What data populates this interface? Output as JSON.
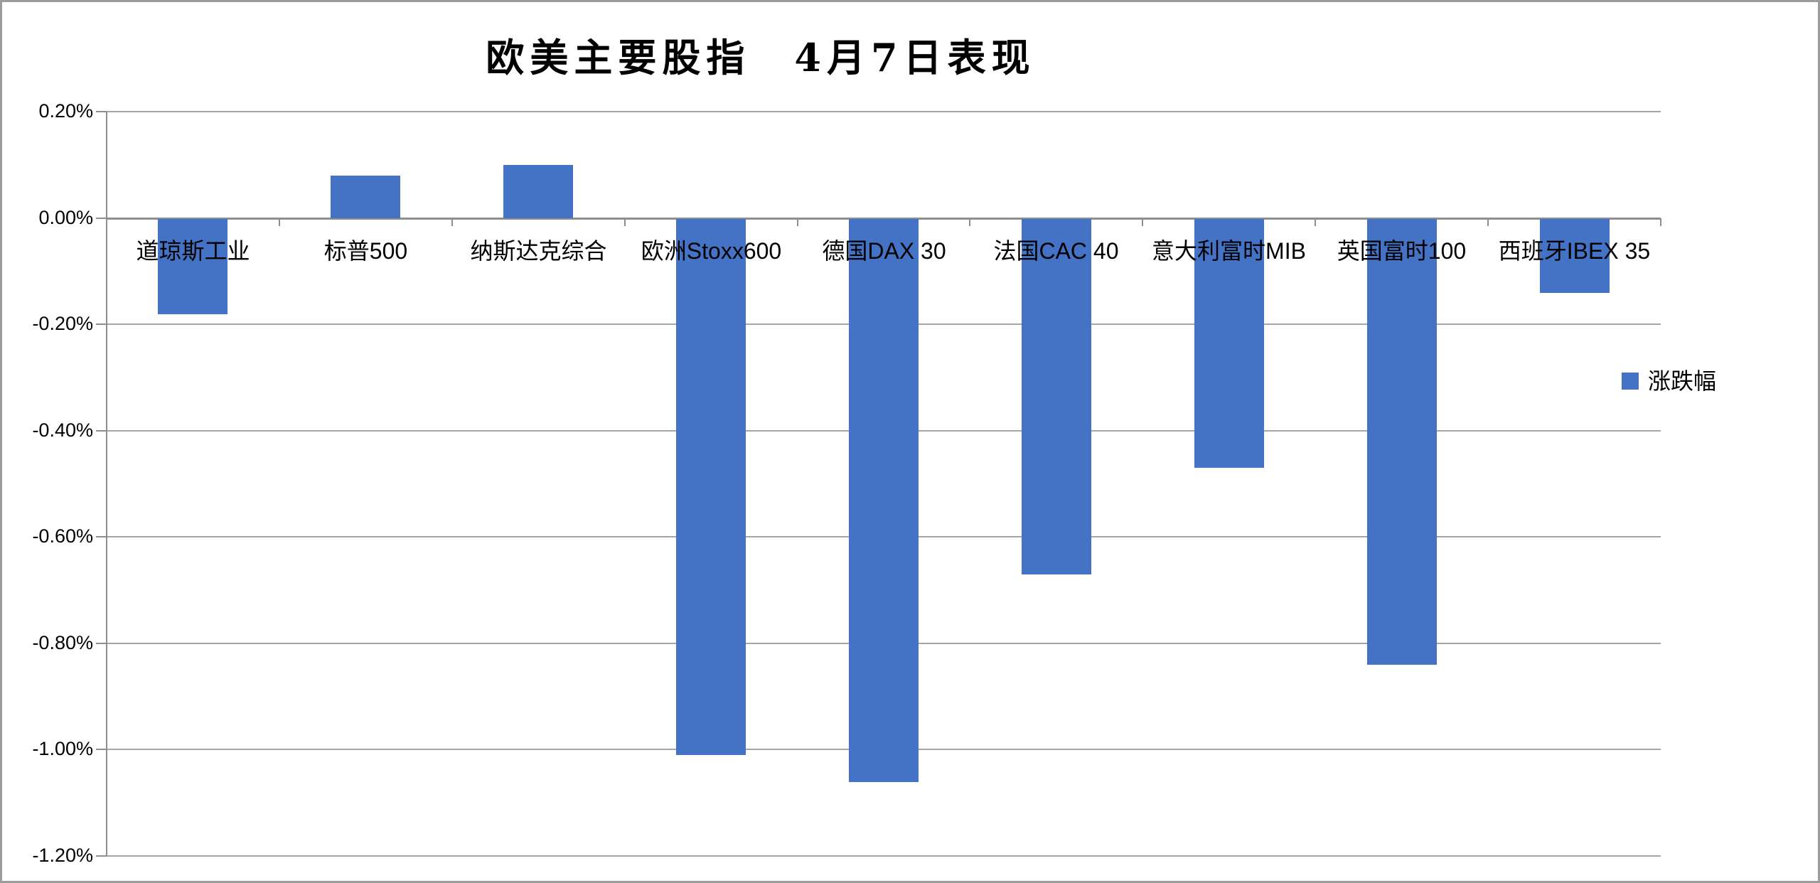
{
  "chart_data": {
    "type": "bar",
    "title": "欧美主要股指　4月7日表现",
    "categories": [
      "道琼斯工业",
      "标普500",
      "纳斯达克综合",
      "欧洲Stoxx600",
      "德国DAX 30",
      "法国CAC 40",
      "意大利富时MIB",
      "英国富时100",
      "西班牙IBEX 35"
    ],
    "series": [
      {
        "name": "涨跌幅",
        "values": [
          -0.18,
          0.08,
          0.1,
          -1.01,
          -1.06,
          -0.67,
          -0.47,
          -0.84,
          -0.14
        ]
      }
    ],
    "value_unit": "%",
    "ylim": [
      -1.2,
      0.2
    ],
    "y_ticks": [
      0.2,
      0.0,
      -0.2,
      -0.4,
      -0.6,
      -0.8,
      -1.0,
      -1.2
    ],
    "y_tick_labels": [
      "0.20%",
      "0.00%",
      "-0.20%",
      "-0.40%",
      "-0.60%",
      "-0.80%",
      "-1.00%",
      "-1.20%"
    ],
    "grid": true,
    "legend_position": "right",
    "bar_color": "#4472C4",
    "gridline_color": "#a6a6a6",
    "axis_color": "#8e8e8e"
  }
}
